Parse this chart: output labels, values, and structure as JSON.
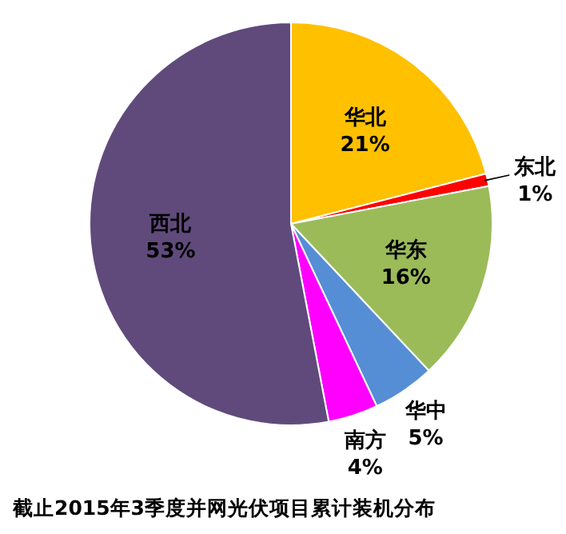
{
  "chart_data": {
    "type": "pie",
    "title": "截止2015年3季度并网光伏项目累计装机分布",
    "categories": [
      "华北",
      "东北",
      "华东",
      "华中",
      "南方",
      "西北"
    ],
    "values": [
      21,
      1,
      16,
      5,
      4,
      53
    ],
    "colors": [
      "#ffc000",
      "#ff0000",
      "#9bbb59",
      "#558ed5",
      "#ff00ff",
      "#604a7b"
    ],
    "value_labels": [
      "21%",
      "1%",
      "16%",
      "5%",
      "4%",
      "53%"
    ],
    "legend": false
  }
}
